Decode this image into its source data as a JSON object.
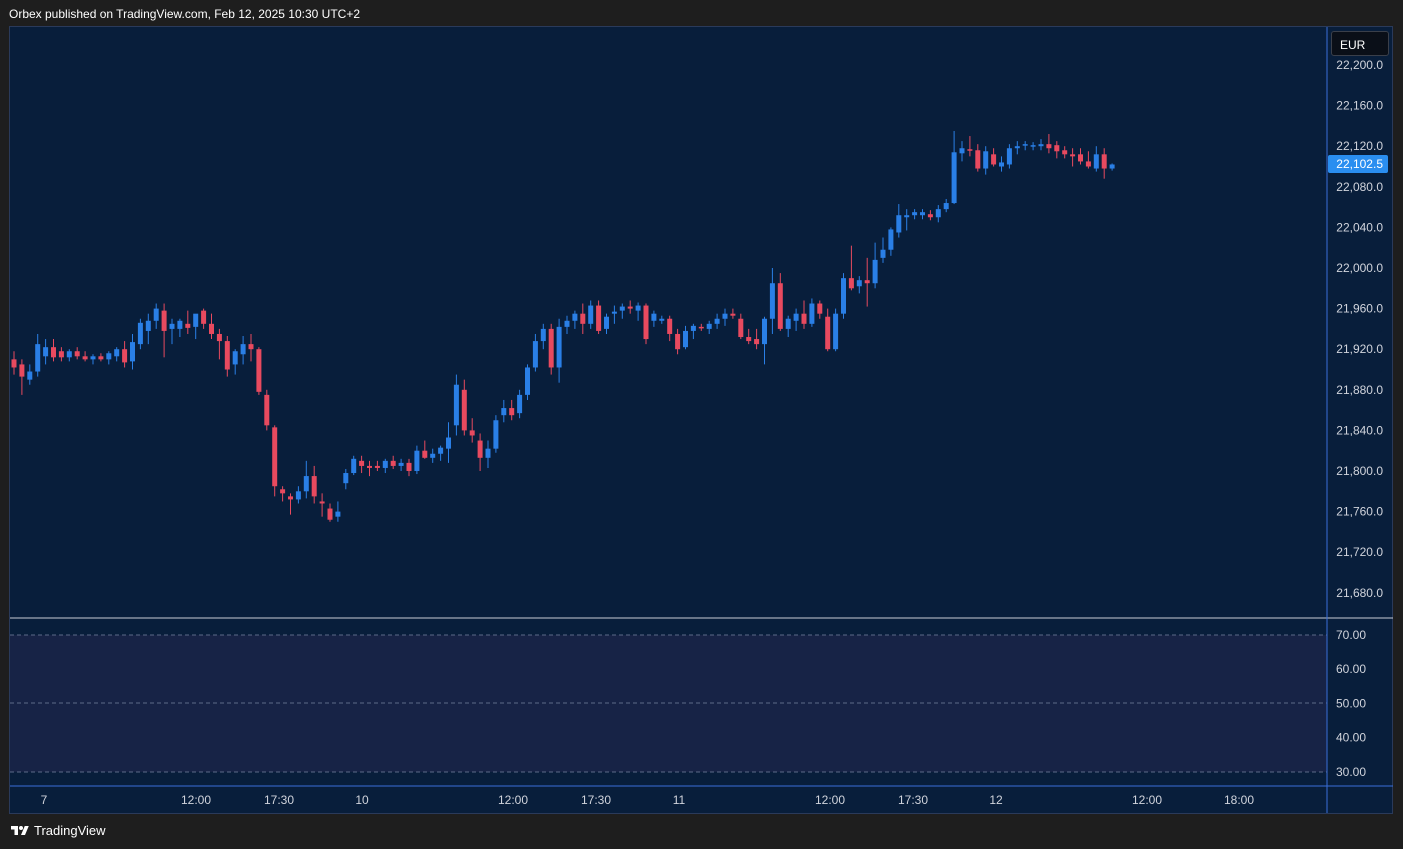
{
  "header": {
    "text": "Orbex published on TradingView.com, Feb 12, 2025 10:30 UTC+2"
  },
  "footer": {
    "brand": "TradingView",
    "logo_icon": "tradingview-logo-icon"
  },
  "colors": {
    "background": "#081e3b",
    "up_candle": "#2a7fe6",
    "down_candle": "#e84a5f",
    "rsi_band": "#172346",
    "price_tag": "#2a8ef0",
    "axis_text": "#d1d4dc"
  },
  "price_axis": {
    "currency": "EUR",
    "labels": [
      "22,200.0",
      "22,160.0",
      "22,120.0",
      "22,080.0",
      "22,040.0",
      "22,000.0",
      "21,960.0",
      "21,920.0",
      "21,880.0",
      "21,840.0",
      "21,800.0",
      "21,760.0",
      "21,720.0",
      "21,680.0"
    ],
    "current_price_label": "22,102.5"
  },
  "rsi_axis": {
    "labels": [
      "70.00",
      "60.00",
      "50.00",
      "40.00",
      "30.00"
    ]
  },
  "time_axis": {
    "labels": [
      "7",
      "12:00",
      "17:30",
      "10",
      "12:00",
      "17:30",
      "11",
      "12:00",
      "17:30",
      "12",
      "12:00",
      "18:00"
    ]
  },
  "chart_data": {
    "type": "candlestick",
    "ylim": [
      21640,
      22240
    ],
    "current_price": 22102.5,
    "candles": [
      {
        "o": 21910,
        "h": 21918,
        "l": 21895,
        "c": 21902
      },
      {
        "o": 21905,
        "h": 21910,
        "l": 21875,
        "c": 21893
      },
      {
        "o": 21890,
        "h": 21905,
        "l": 21885,
        "c": 21898
      },
      {
        "o": 21898,
        "h": 21935,
        "l": 21893,
        "c": 21925
      },
      {
        "o": 21913,
        "h": 21930,
        "l": 21905,
        "c": 21922
      },
      {
        "o": 21922,
        "h": 21930,
        "l": 21908,
        "c": 21912
      },
      {
        "o": 21918,
        "h": 21922,
        "l": 21908,
        "c": 21912
      },
      {
        "o": 21912,
        "h": 21920,
        "l": 21908,
        "c": 21918
      },
      {
        "o": 21918,
        "h": 21922,
        "l": 21910,
        "c": 21913
      },
      {
        "o": 21913,
        "h": 21918,
        "l": 21908,
        "c": 21910
      },
      {
        "o": 21910,
        "h": 21915,
        "l": 21905,
        "c": 21913
      },
      {
        "o": 21913,
        "h": 21916,
        "l": 21908,
        "c": 21910
      },
      {
        "o": 21910,
        "h": 21918,
        "l": 21905,
        "c": 21916
      },
      {
        "o": 21913,
        "h": 21922,
        "l": 21908,
        "c": 21920
      },
      {
        "o": 21920,
        "h": 21928,
        "l": 21902,
        "c": 21907
      },
      {
        "o": 21908,
        "h": 21935,
        "l": 21900,
        "c": 21927
      },
      {
        "o": 21925,
        "h": 21950,
        "l": 21920,
        "c": 21946
      },
      {
        "o": 21938,
        "h": 21955,
        "l": 21925,
        "c": 21948
      },
      {
        "o": 21948,
        "h": 21965,
        "l": 21940,
        "c": 21960
      },
      {
        "o": 21958,
        "h": 21965,
        "l": 21912,
        "c": 21938
      },
      {
        "o": 21940,
        "h": 21950,
        "l": 21925,
        "c": 21945
      },
      {
        "o": 21940,
        "h": 21950,
        "l": 21932,
        "c": 21948
      },
      {
        "o": 21945,
        "h": 21958,
        "l": 21935,
        "c": 21941
      },
      {
        "o": 21942,
        "h": 21950,
        "l": 21930,
        "c": 21955
      },
      {
        "o": 21958,
        "h": 21960,
        "l": 21940,
        "c": 21945
      },
      {
        "o": 21945,
        "h": 21955,
        "l": 21930,
        "c": 21935
      },
      {
        "o": 21935,
        "h": 21940,
        "l": 21910,
        "c": 21928
      },
      {
        "o": 21928,
        "h": 21933,
        "l": 21893,
        "c": 21900
      },
      {
        "o": 21905,
        "h": 21920,
        "l": 21895,
        "c": 21918
      },
      {
        "o": 21915,
        "h": 21933,
        "l": 21905,
        "c": 21925
      },
      {
        "o": 21925,
        "h": 21935,
        "l": 21908,
        "c": 21920
      },
      {
        "o": 21920,
        "h": 21922,
        "l": 21875,
        "c": 21878
      },
      {
        "o": 21875,
        "h": 21880,
        "l": 21840,
        "c": 21845
      },
      {
        "o": 21843,
        "h": 21845,
        "l": 21775,
        "c": 21785
      },
      {
        "o": 21782,
        "h": 21785,
        "l": 21770,
        "c": 21778
      },
      {
        "o": 21775,
        "h": 21778,
        "l": 21757,
        "c": 21772
      },
      {
        "o": 21772,
        "h": 21785,
        "l": 21768,
        "c": 21780
      },
      {
        "o": 21780,
        "h": 21810,
        "l": 21773,
        "c": 21795
      },
      {
        "o": 21795,
        "h": 21805,
        "l": 21768,
        "c": 21775
      },
      {
        "o": 21770,
        "h": 21778,
        "l": 21755,
        "c": 21768
      },
      {
        "o": 21763,
        "h": 21768,
        "l": 21750,
        "c": 21752
      },
      {
        "o": 21755,
        "h": 21770,
        "l": 21750,
        "c": 21760
      },
      {
        "o": 21788,
        "h": 21802,
        "l": 21782,
        "c": 21798
      },
      {
        "o": 21798,
        "h": 21815,
        "l": 21796,
        "c": 21812
      },
      {
        "o": 21810,
        "h": 21815,
        "l": 21798,
        "c": 21805
      },
      {
        "o": 21805,
        "h": 21810,
        "l": 21795,
        "c": 21803
      },
      {
        "o": 21805,
        "h": 21810,
        "l": 21800,
        "c": 21803
      },
      {
        "o": 21803,
        "h": 21812,
        "l": 21798,
        "c": 21810
      },
      {
        "o": 21810,
        "h": 21815,
        "l": 21802,
        "c": 21805
      },
      {
        "o": 21805,
        "h": 21812,
        "l": 21800,
        "c": 21808
      },
      {
        "o": 21808,
        "h": 21812,
        "l": 21795,
        "c": 21800
      },
      {
        "o": 21800,
        "h": 21825,
        "l": 21797,
        "c": 21820
      },
      {
        "o": 21820,
        "h": 21830,
        "l": 21812,
        "c": 21813
      },
      {
        "o": 21813,
        "h": 21822,
        "l": 21808,
        "c": 21817
      },
      {
        "o": 21817,
        "h": 21825,
        "l": 21810,
        "c": 21823
      },
      {
        "o": 21822,
        "h": 21848,
        "l": 21808,
        "c": 21833
      },
      {
        "o": 21845,
        "h": 21895,
        "l": 21835,
        "c": 21885
      },
      {
        "o": 21880,
        "h": 21890,
        "l": 21835,
        "c": 21840
      },
      {
        "o": 21840,
        "h": 21852,
        "l": 21828,
        "c": 21835
      },
      {
        "o": 21830,
        "h": 21837,
        "l": 21800,
        "c": 21813
      },
      {
        "o": 21813,
        "h": 21830,
        "l": 21803,
        "c": 21822
      },
      {
        "o": 21822,
        "h": 21855,
        "l": 21818,
        "c": 21850
      },
      {
        "o": 21855,
        "h": 21870,
        "l": 21848,
        "c": 21862
      },
      {
        "o": 21862,
        "h": 21870,
        "l": 21850,
        "c": 21855
      },
      {
        "o": 21857,
        "h": 21880,
        "l": 21852,
        "c": 21875
      },
      {
        "o": 21875,
        "h": 21905,
        "l": 21870,
        "c": 21902
      },
      {
        "o": 21902,
        "h": 21935,
        "l": 21898,
        "c": 21928
      },
      {
        "o": 21928,
        "h": 21945,
        "l": 21920,
        "c": 21940
      },
      {
        "o": 21940,
        "h": 21945,
        "l": 21895,
        "c": 21902
      },
      {
        "o": 21902,
        "h": 21950,
        "l": 21887,
        "c": 21942
      },
      {
        "o": 21942,
        "h": 21953,
        "l": 21935,
        "c": 21948
      },
      {
        "o": 21948,
        "h": 21958,
        "l": 21940,
        "c": 21955
      },
      {
        "o": 21955,
        "h": 21965,
        "l": 21935,
        "c": 21945
      },
      {
        "o": 21945,
        "h": 21968,
        "l": 21940,
        "c": 21963
      },
      {
        "o": 21963,
        "h": 21968,
        "l": 21935,
        "c": 21938
      },
      {
        "o": 21940,
        "h": 21955,
        "l": 21935,
        "c": 21952
      },
      {
        "o": 21955,
        "h": 21963,
        "l": 21945,
        "c": 21957
      },
      {
        "o": 21958,
        "h": 21965,
        "l": 21950,
        "c": 21962
      },
      {
        "o": 21962,
        "h": 21968,
        "l": 21955,
        "c": 21960
      },
      {
        "o": 21958,
        "h": 21966,
        "l": 21948,
        "c": 21963
      },
      {
        "o": 21963,
        "h": 21965,
        "l": 21925,
        "c": 21930
      },
      {
        "o": 21948,
        "h": 21958,
        "l": 21942,
        "c": 21955
      },
      {
        "o": 21948,
        "h": 21953,
        "l": 21945,
        "c": 21950
      },
      {
        "o": 21950,
        "h": 21953,
        "l": 21928,
        "c": 21935
      },
      {
        "o": 21935,
        "h": 21940,
        "l": 21915,
        "c": 21920
      },
      {
        "o": 21922,
        "h": 21943,
        "l": 21920,
        "c": 21938
      },
      {
        "o": 21938,
        "h": 21945,
        "l": 21930,
        "c": 21943
      },
      {
        "o": 21942,
        "h": 21945,
        "l": 21938,
        "c": 21941
      },
      {
        "o": 21940,
        "h": 21948,
        "l": 21935,
        "c": 21945
      },
      {
        "o": 21945,
        "h": 21955,
        "l": 21940,
        "c": 21950
      },
      {
        "o": 21950,
        "h": 21960,
        "l": 21943,
        "c": 21955
      },
      {
        "o": 21955,
        "h": 21960,
        "l": 21950,
        "c": 21953
      },
      {
        "o": 21950,
        "h": 21955,
        "l": 21930,
        "c": 21932
      },
      {
        "o": 21932,
        "h": 21940,
        "l": 21925,
        "c": 21928
      },
      {
        "o": 21930,
        "h": 21940,
        "l": 21920,
        "c": 21925
      },
      {
        "o": 21925,
        "h": 21952,
        "l": 21905,
        "c": 21950
      },
      {
        "o": 21950,
        "h": 22000,
        "l": 21935,
        "c": 21985
      },
      {
        "o": 21985,
        "h": 21995,
        "l": 21938,
        "c": 21940
      },
      {
        "o": 21940,
        "h": 21953,
        "l": 21932,
        "c": 21950
      },
      {
        "o": 21948,
        "h": 21960,
        "l": 21938,
        "c": 21955
      },
      {
        "o": 21955,
        "h": 21968,
        "l": 21940,
        "c": 21945
      },
      {
        "o": 21945,
        "h": 21970,
        "l": 21942,
        "c": 21965
      },
      {
        "o": 21965,
        "h": 21968,
        "l": 21950,
        "c": 21955
      },
      {
        "o": 21952,
        "h": 21960,
        "l": 21918,
        "c": 21920
      },
      {
        "o": 21920,
        "h": 21960,
        "l": 21918,
        "c": 21955
      },
      {
        "o": 21955,
        "h": 21995,
        "l": 21950,
        "c": 21990
      },
      {
        "o": 21990,
        "h": 22022,
        "l": 21978,
        "c": 21980
      },
      {
        "o": 21982,
        "h": 21992,
        "l": 21975,
        "c": 21988
      },
      {
        "o": 21988,
        "h": 22010,
        "l": 21962,
        "c": 21985
      },
      {
        "o": 21985,
        "h": 22025,
        "l": 21980,
        "c": 22008
      },
      {
        "o": 22010,
        "h": 22030,
        "l": 22005,
        "c": 22018
      },
      {
        "o": 22018,
        "h": 22040,
        "l": 22012,
        "c": 22038
      },
      {
        "o": 22035,
        "h": 22063,
        "l": 22030,
        "c": 22052
      },
      {
        "o": 22050,
        "h": 22058,
        "l": 22037,
        "c": 22052
      },
      {
        "o": 22052,
        "h": 22058,
        "l": 22048,
        "c": 22055
      },
      {
        "o": 22052,
        "h": 22058,
        "l": 22048,
        "c": 22055
      },
      {
        "o": 22053,
        "h": 22057,
        "l": 22047,
        "c": 22050
      },
      {
        "o": 22050,
        "h": 22062,
        "l": 22045,
        "c": 22058
      },
      {
        "o": 22058,
        "h": 22068,
        "l": 22055,
        "c": 22064
      },
      {
        "o": 22064,
        "h": 22135,
        "l": 22063,
        "c": 22114
      },
      {
        "o": 22113,
        "h": 22125,
        "l": 22105,
        "c": 22118
      },
      {
        "o": 22117,
        "h": 22130,
        "l": 22110,
        "c": 22116
      },
      {
        "o": 22116,
        "h": 22122,
        "l": 22095,
        "c": 22098
      },
      {
        "o": 22098,
        "h": 22120,
        "l": 22092,
        "c": 22115
      },
      {
        "o": 22112,
        "h": 22118,
        "l": 22100,
        "c": 22102
      },
      {
        "o": 22100,
        "h": 22110,
        "l": 22095,
        "c": 22104
      },
      {
        "o": 22102,
        "h": 22122,
        "l": 22098,
        "c": 22118
      },
      {
        "o": 22118,
        "h": 22125,
        "l": 22112,
        "c": 22120
      },
      {
        "o": 22121,
        "h": 22125,
        "l": 22116,
        "c": 22122
      },
      {
        "o": 22120,
        "h": 22124,
        "l": 22116,
        "c": 22121
      },
      {
        "o": 22120,
        "h": 22127,
        "l": 22116,
        "c": 22122
      },
      {
        "o": 22122,
        "h": 22132,
        "l": 22113,
        "c": 22118
      },
      {
        "o": 22121,
        "h": 22125,
        "l": 22108,
        "c": 22115
      },
      {
        "o": 22116,
        "h": 22120,
        "l": 22108,
        "c": 22112
      },
      {
        "o": 22112,
        "h": 22118,
        "l": 22100,
        "c": 22110
      },
      {
        "o": 22112,
        "h": 22118,
        "l": 22102,
        "c": 22105
      },
      {
        "o": 22105,
        "h": 22115,
        "l": 22098,
        "c": 22100
      },
      {
        "o": 22098,
        "h": 22120,
        "l": 22095,
        "c": 22112
      },
      {
        "o": 22112,
        "h": 22118,
        "l": 22088,
        "c": 22098
      },
      {
        "o": 22098,
        "h": 22103,
        "l": 22096,
        "c": 22102
      }
    ]
  }
}
